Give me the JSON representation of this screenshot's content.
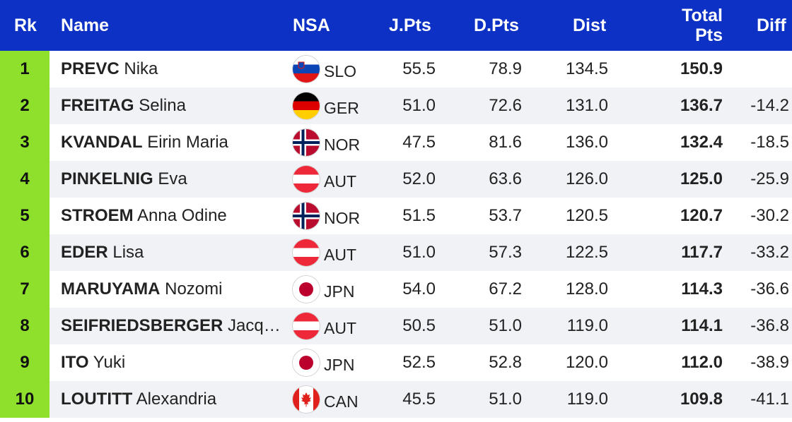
{
  "header": {
    "rk": "Rk",
    "name": "Name",
    "nsa": "NSA",
    "jpts": "J.Pts",
    "dpts": "D.Pts",
    "dist": "Dist",
    "total_line1": "Total",
    "total_line2": "Pts",
    "diff": "Diff"
  },
  "rows": [
    {
      "rk": "1",
      "last": "PREVC",
      "first": " Nika",
      "flag": "slo",
      "nsa": "SLO",
      "jpts": "55.5",
      "dpts": "78.9",
      "dist": "134.5",
      "total": "150.9",
      "diff": ""
    },
    {
      "rk": "2",
      "last": "FREITAG",
      "first": " Selina",
      "flag": "ger",
      "nsa": "GER",
      "jpts": "51.0",
      "dpts": "72.6",
      "dist": "131.0",
      "total": "136.7",
      "diff": "-14.2"
    },
    {
      "rk": "3",
      "last": "KVANDAL",
      "first": " Eirin Maria",
      "flag": "nor",
      "nsa": "NOR",
      "jpts": "47.5",
      "dpts": "81.6",
      "dist": "136.0",
      "total": "132.4",
      "diff": "-18.5"
    },
    {
      "rk": "4",
      "last": "PINKELNIG",
      "first": " Eva",
      "flag": "aut",
      "nsa": "AUT",
      "jpts": "52.0",
      "dpts": "63.6",
      "dist": "126.0",
      "total": "125.0",
      "diff": "-25.9"
    },
    {
      "rk": "5",
      "last": "STROEM",
      "first": " Anna Odine",
      "flag": "nor",
      "nsa": "NOR",
      "jpts": "51.5",
      "dpts": "53.7",
      "dist": "120.5",
      "total": "120.7",
      "diff": "-30.2"
    },
    {
      "rk": "6",
      "last": "EDER",
      "first": " Lisa",
      "flag": "aut",
      "nsa": "AUT",
      "jpts": "51.0",
      "dpts": "57.3",
      "dist": "122.5",
      "total": "117.7",
      "diff": "-33.2"
    },
    {
      "rk": "7",
      "last": "MARUYAMA",
      "first": " Nozomi",
      "flag": "jpn",
      "nsa": "JPN",
      "jpts": "54.0",
      "dpts": "67.2",
      "dist": "128.0",
      "total": "114.3",
      "diff": "-36.6"
    },
    {
      "rk": "8",
      "last": "SEIFRIEDSBERGER",
      "first": " Jacqueline",
      "flag": "aut",
      "nsa": "AUT",
      "jpts": "50.5",
      "dpts": "51.0",
      "dist": "119.0",
      "total": "114.1",
      "diff": "-36.8"
    },
    {
      "rk": "9",
      "last": "ITO",
      "first": " Yuki",
      "flag": "jpn",
      "nsa": "JPN",
      "jpts": "52.5",
      "dpts": "52.8",
      "dist": "120.0",
      "total": "112.0",
      "diff": "-38.9"
    },
    {
      "rk": "10",
      "last": "LOUTITT",
      "first": " Alexandria",
      "flag": "can",
      "nsa": "CAN",
      "jpts": "45.5",
      "dpts": "51.0",
      "dist": "119.0",
      "total": "109.8",
      "diff": "-41.1"
    }
  ],
  "colors": {
    "header_bg": "#0c31c4",
    "rank_bg": "#8fe02c",
    "alt_row_bg": "#f1f2f6"
  }
}
